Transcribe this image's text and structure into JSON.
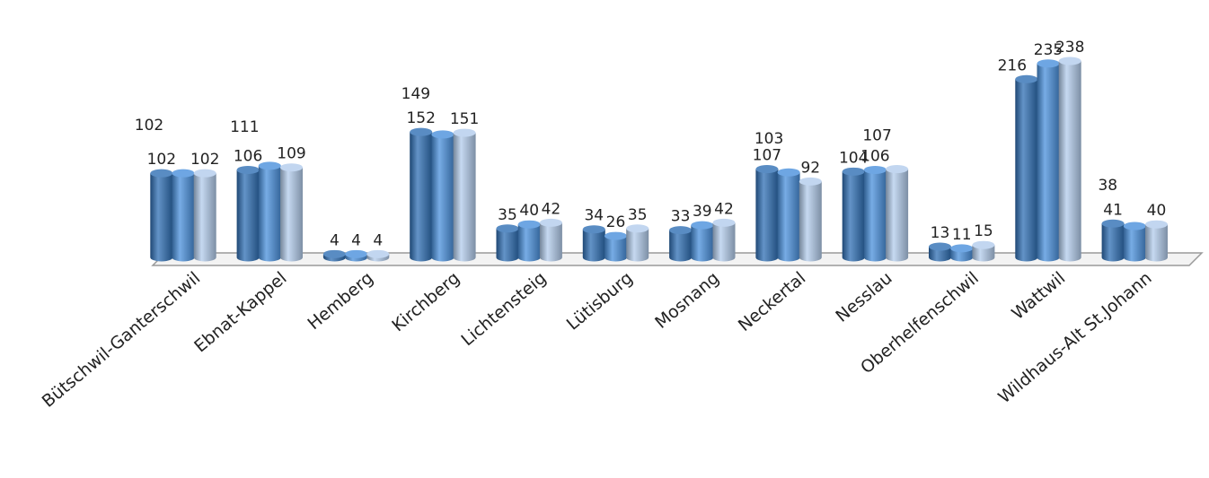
{
  "chart_data": {
    "type": "bar",
    "categories": [
      "Bütschwil-Ganterschwil",
      "Ebnat-Kappel",
      "Hemberg",
      "Kirchberg",
      "Lichtensteig",
      "Lütisburg",
      "Mosnang",
      "Neckertal",
      "Nesslau",
      "Oberhelfenschwil",
      "Wattwil",
      "Wildhaus-Alt St.Johann"
    ],
    "series": [
      {
        "values": [
          102,
          106,
          4,
          152,
          35,
          34,
          33,
          107,
          104,
          13,
          216,
          41
        ],
        "color": "#2f6fb4"
      },
      {
        "values": [
          102,
          111,
          4,
          149,
          40,
          26,
          39,
          103,
          106,
          11,
          235,
          38
        ],
        "color": "#4a90dc"
      },
      {
        "values": [
          102,
          109,
          4,
          151,
          42,
          35,
          42,
          92,
          107,
          15,
          238,
          40
        ],
        "color": "#b3ccec"
      }
    ],
    "title": "",
    "xlabel": "",
    "ylabel": "",
    "ylim": [
      0,
      240
    ],
    "grid": false,
    "legend": "none"
  }
}
